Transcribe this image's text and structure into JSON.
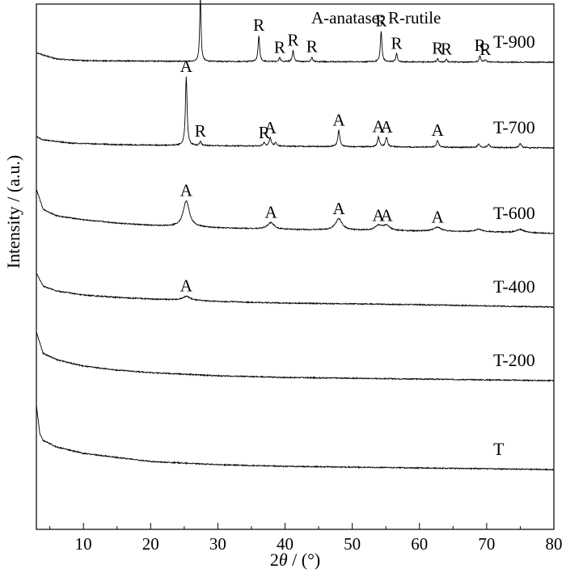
{
  "chart_data": {
    "type": "line",
    "title": "",
    "legend_text": "A-anatase; R-rutile",
    "xlabel": "2θ / (°)",
    "ylabel": "Intensity / (a.u.)",
    "xlim": [
      3,
      80
    ],
    "x_ticks": [
      10,
      20,
      30,
      40,
      50,
      60,
      70,
      80
    ],
    "y_ticks": "none",
    "grid": false,
    "line_color": "#000000",
    "series": [
      {
        "name": "T-900",
        "offset": 578,
        "background": [
          [
            3,
            12
          ],
          [
            4,
            9
          ],
          [
            6,
            4
          ],
          [
            10,
            2
          ],
          [
            25,
            1
          ],
          [
            50,
            0.5
          ],
          [
            80,
            0
          ]
        ],
        "peaks": [
          {
            "x": 27.4,
            "label": "R",
            "h": 80,
            "w": 0.12
          },
          {
            "x": 36.1,
            "label": "R",
            "h": 32,
            "w": 0.14
          },
          {
            "x": 39.2,
            "label": "R",
            "h": 5,
            "w": 0.14
          },
          {
            "x": 41.2,
            "label": "R",
            "h": 14,
            "w": 0.14
          },
          {
            "x": 44.0,
            "label": "R",
            "h": 6,
            "w": 0.14
          },
          {
            "x": 54.3,
            "label": "R",
            "h": 38,
            "w": 0.14
          },
          {
            "x": 56.6,
            "label": "R",
            "h": 10,
            "w": 0.14
          },
          {
            "x": 62.7,
            "label": "R",
            "h": 4,
            "w": 0.14
          },
          {
            "x": 64.0,
            "label": "R",
            "h": 3,
            "w": 0.14
          },
          {
            "x": 69.0,
            "label": "R",
            "h": 8,
            "w": 0.14
          },
          {
            "x": 69.8,
            "label": "R",
            "h": 3,
            "w": 0.14
          }
        ]
      },
      {
        "name": "T-700",
        "offset": 472,
        "background": [
          [
            3,
            14
          ],
          [
            4,
            10
          ],
          [
            8,
            6
          ],
          [
            15,
            4
          ],
          [
            25,
            3
          ],
          [
            40,
            2
          ],
          [
            60,
            1
          ],
          [
            80,
            0
          ]
        ],
        "peaks": [
          {
            "x": 25.3,
            "label": "A",
            "h": 85,
            "w": 0.15
          },
          {
            "x": 27.4,
            "label": "R",
            "h": 5,
            "w": 0.15
          },
          {
            "x": 36.9,
            "label": "R",
            "h": 4,
            "w": 0.18
          },
          {
            "x": 37.8,
            "label": "A",
            "h": 10,
            "w": 0.18
          },
          {
            "x": 38.6,
            "label": "",
            "h": 4,
            "w": 0.18
          },
          {
            "x": 48.0,
            "label": "A",
            "h": 20,
            "w": 0.18
          },
          {
            "x": 53.9,
            "label": "A",
            "h": 12,
            "w": 0.18
          },
          {
            "x": 55.1,
            "label": "A",
            "h": 12,
            "w": 0.18
          },
          {
            "x": 62.7,
            "label": "A",
            "h": 8,
            "w": 0.2
          },
          {
            "x": 68.8,
            "label": "",
            "h": 4,
            "w": 0.2
          },
          {
            "x": 70.3,
            "label": "",
            "h": 4,
            "w": 0.2
          },
          {
            "x": 75.0,
            "label": "",
            "h": 5,
            "w": 0.2
          }
        ]
      },
      {
        "name": "T-600",
        "offset": 366,
        "background": [
          [
            3,
            55
          ],
          [
            4,
            30
          ],
          [
            6,
            22
          ],
          [
            10,
            17
          ],
          [
            15,
            13
          ],
          [
            20,
            10
          ],
          [
            30,
            7
          ],
          [
            40,
            5
          ],
          [
            50,
            4
          ],
          [
            60,
            3
          ],
          [
            70,
            2
          ],
          [
            80,
            0
          ]
        ],
        "peaks": [
          {
            "x": 25.3,
            "label": "A",
            "h": 32,
            "w": 0.55
          },
          {
            "x": 37.9,
            "label": "A",
            "h": 8,
            "w": 0.6
          },
          {
            "x": 48.0,
            "label": "A",
            "h": 14,
            "w": 0.6
          },
          {
            "x": 53.9,
            "label": "A",
            "h": 6,
            "w": 0.6
          },
          {
            "x": 55.1,
            "label": "A",
            "h": 6,
            "w": 0.6
          },
          {
            "x": 62.7,
            "label": "A",
            "h": 5,
            "w": 0.7
          },
          {
            "x": 68.8,
            "label": "",
            "h": 3,
            "w": 0.7
          },
          {
            "x": 75.0,
            "label": "",
            "h": 4,
            "w": 0.7
          }
        ]
      },
      {
        "name": "T-400",
        "offset": 275,
        "background": [
          [
            3,
            42
          ],
          [
            4,
            26
          ],
          [
            6,
            20
          ],
          [
            10,
            15
          ],
          [
            15,
            12
          ],
          [
            20,
            10
          ],
          [
            30,
            7
          ],
          [
            40,
            5
          ],
          [
            50,
            4
          ],
          [
            60,
            3
          ],
          [
            70,
            1.5
          ],
          [
            80,
            0
          ]
        ],
        "peaks": [
          {
            "x": 25.3,
            "label": "A",
            "h": 5,
            "w": 0.7
          }
        ]
      },
      {
        "name": "T-200",
        "offset": 184,
        "background": [
          [
            3,
            60
          ],
          [
            4,
            34
          ],
          [
            6,
            26
          ],
          [
            8,
            22
          ],
          [
            10,
            18
          ],
          [
            15,
            13
          ],
          [
            20,
            10
          ],
          [
            30,
            6
          ],
          [
            40,
            4
          ],
          [
            60,
            2
          ],
          [
            80,
            0
          ]
        ],
        "peaks": []
      },
      {
        "name": "T",
        "offset": 74,
        "background": [
          [
            3,
            80
          ],
          [
            3.5,
            45
          ],
          [
            4,
            36
          ],
          [
            6,
            28
          ],
          [
            10,
            20
          ],
          [
            15,
            15
          ],
          [
            20,
            10
          ],
          [
            30,
            6
          ],
          [
            40,
            4
          ],
          [
            60,
            2
          ],
          [
            80,
            0
          ]
        ],
        "peaks": []
      }
    ]
  }
}
